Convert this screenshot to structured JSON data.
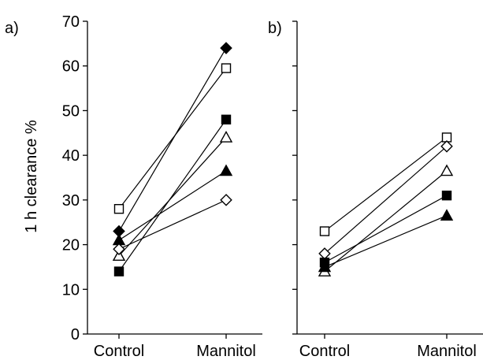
{
  "chart_data": [
    {
      "type": "line",
      "panel_label": "a)",
      "ylabel": "1 h clearance  %",
      "categories": [
        "Control",
        "Mannitol"
      ],
      "ylim": [
        0,
        70
      ],
      "yticks": [
        "0",
        "10",
        "20",
        "30",
        "40",
        "50",
        "60",
        "70"
      ],
      "series": [
        {
          "marker": "diamond-filled",
          "values": [
            23,
            64
          ]
        },
        {
          "marker": "square-open",
          "values": [
            28,
            59.5
          ]
        },
        {
          "marker": "square-filled",
          "values": [
            14,
            48
          ]
        },
        {
          "marker": "triangle-open",
          "values": [
            17.5,
            44
          ]
        },
        {
          "marker": "triangle-filled",
          "values": [
            21,
            36.5
          ]
        },
        {
          "marker": "diamond-open",
          "values": [
            19,
            30
          ]
        }
      ]
    },
    {
      "type": "line",
      "panel_label": "b)",
      "categories": [
        "Control",
        "Mannitol"
      ],
      "ylim": [
        0,
        70
      ],
      "series": [
        {
          "marker": "square-open",
          "values": [
            23,
            44
          ]
        },
        {
          "marker": "diamond-open",
          "values": [
            18,
            42
          ]
        },
        {
          "marker": "triangle-open",
          "values": [
            14,
            36.5
          ]
        },
        {
          "marker": "square-filled",
          "values": [
            16,
            31
          ]
        },
        {
          "marker": "triangle-filled",
          "values": [
            15,
            26.5
          ]
        }
      ]
    }
  ]
}
